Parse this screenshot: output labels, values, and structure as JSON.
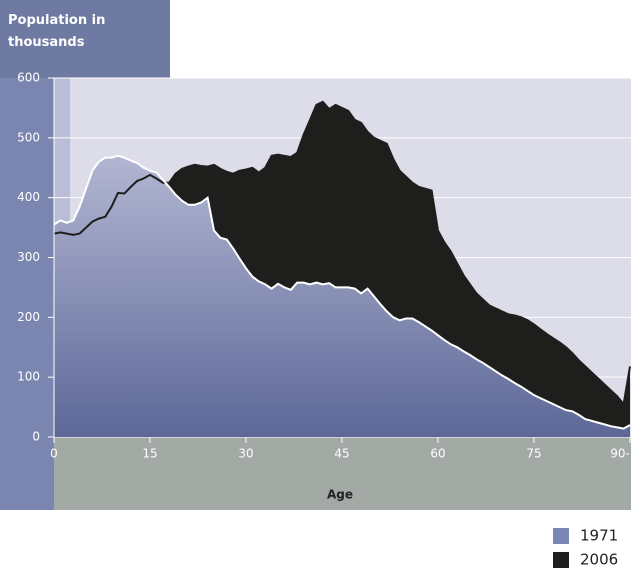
{
  "chart_data": {
    "type": "area",
    "title": "Population in thousands",
    "x_label": "Age",
    "x": [
      0,
      1,
      2,
      3,
      4,
      5,
      6,
      7,
      8,
      9,
      10,
      11,
      12,
      13,
      14,
      15,
      16,
      17,
      18,
      19,
      20,
      21,
      22,
      23,
      24,
      25,
      26,
      27,
      28,
      29,
      30,
      31,
      32,
      33,
      34,
      35,
      36,
      37,
      38,
      39,
      40,
      41,
      42,
      43,
      44,
      45,
      46,
      47,
      48,
      49,
      50,
      51,
      52,
      53,
      54,
      55,
      56,
      57,
      58,
      59,
      60,
      61,
      62,
      63,
      64,
      65,
      66,
      67,
      68,
      69,
      70,
      71,
      72,
      73,
      74,
      75,
      76,
      77,
      78,
      79,
      80,
      81,
      82,
      83,
      84,
      85,
      86,
      87,
      88,
      89,
      90
    ],
    "series": [
      {
        "name": "1971",
        "color": "#7b85b5",
        "values": [
          355,
          362,
          358,
          362,
          385,
          415,
          445,
          460,
          467,
          467,
          470,
          467,
          462,
          458,
          450,
          445,
          442,
          430,
          418,
          405,
          395,
          388,
          388,
          392,
          400,
          345,
          333,
          330,
          315,
          298,
          282,
          268,
          260,
          255,
          248,
          256,
          250,
          246,
          258,
          258,
          255,
          258,
          255,
          257,
          250,
          250,
          250,
          248,
          240,
          248,
          235,
          222,
          210,
          200,
          195,
          198,
          198,
          192,
          185,
          178,
          170,
          162,
          155,
          150,
          143,
          137,
          130,
          124,
          117,
          110,
          103,
          97,
          90,
          84,
          77,
          70,
          65,
          60,
          55,
          50,
          45,
          43,
          37,
          30,
          27,
          24,
          21,
          18,
          16,
          14,
          20
        ]
      },
      {
        "name": "2006",
        "color": "#1e1f1c",
        "values": [
          340,
          342,
          340,
          338,
          340,
          350,
          360,
          365,
          368,
          385,
          408,
          407,
          418,
          428,
          432,
          438,
          432,
          425,
          425,
          440,
          448,
          452,
          455,
          453,
          452,
          455,
          448,
          443,
          440,
          445,
          447,
          450,
          442,
          450,
          470,
          472,
          470,
          468,
          475,
          505,
          530,
          555,
          560,
          548,
          555,
          550,
          545,
          530,
          525,
          510,
          500,
          495,
          490,
          465,
          445,
          435,
          425,
          418,
          415,
          412,
          345,
          325,
          310,
          290,
          270,
          255,
          240,
          230,
          220,
          215,
          210,
          205,
          203,
          200,
          195,
          188,
          180,
          172,
          165,
          158,
          150,
          140,
          128,
          118,
          108,
          98,
          88,
          78,
          68,
          55,
          118
        ]
      }
    ],
    "xlim": [
      0,
      90
    ],
    "xticks": [
      0,
      15,
      30,
      45,
      60,
      75,
      {
        "value": 90,
        "label": "90-"
      }
    ],
    "ylim": [
      0,
      600
    ],
    "yticks": [
      0,
      100,
      200,
      300,
      400,
      500,
      600
    ],
    "grid": true
  }
}
